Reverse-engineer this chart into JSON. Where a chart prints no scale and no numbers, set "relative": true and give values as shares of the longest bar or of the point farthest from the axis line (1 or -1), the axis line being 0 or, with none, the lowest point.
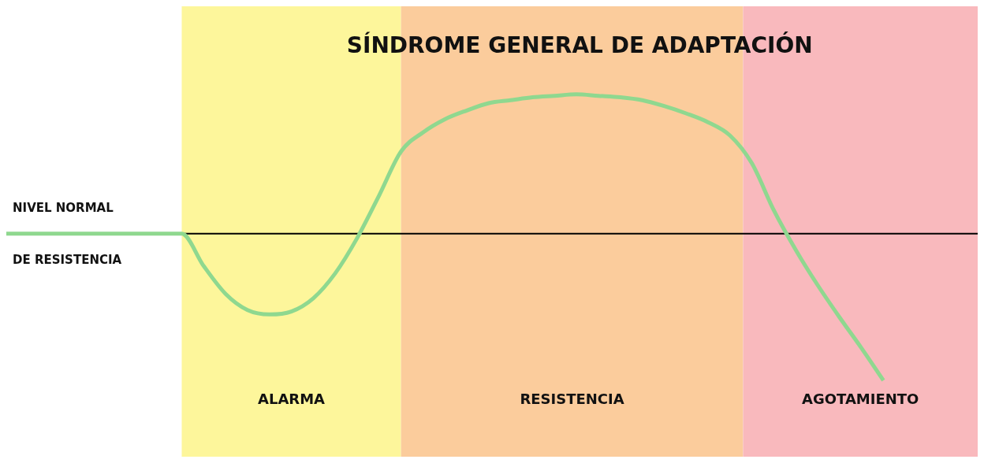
{
  "chart_data": {
    "type": "line",
    "title": "SÍNDROME GENERAL DE ADAPTACIÓN",
    "relative": true,
    "categories": [
      null,
      null,
      null,
      null,
      null,
      null,
      null,
      null,
      null,
      null,
      null,
      null,
      null,
      null,
      null,
      null,
      null,
      null,
      null,
      null,
      null,
      null,
      null,
      null,
      null,
      null,
      null,
      null,
      null,
      null,
      null,
      null,
      null,
      null,
      null,
      null,
      null,
      null,
      null,
      null,
      null
    ],
    "series": [
      {
        "color": "#8fd88f",
        "values": [
          0,
          0,
          0,
          0,
          0,
          0,
          0,
          0,
          0,
          -0.22,
          -0.41,
          -0.52,
          -0.55,
          -0.53,
          -0.44,
          -0.27,
          -0.03,
          0.26,
          0.56,
          0.69,
          0.78,
          0.84,
          0.89,
          0.91,
          0.93,
          0.94,
          0.95,
          0.94,
          0.93,
          0.91,
          0.87,
          0.82,
          0.76,
          0.67,
          0.48,
          0.16,
          -0.11,
          -0.35,
          -0.57,
          -0.78,
          -1
        ]
      }
    ],
    "ref_lines": [
      {
        "axis": "y",
        "value": 0,
        "label": "NIVEL NORMAL DE RESISTENCIA",
        "color": "#000000"
      }
    ],
    "annotations": [
      "ALARMA",
      "RESISTENCIA",
      "AGOTAMIENTO"
    ],
    "line_style": "solid"
  }
}
